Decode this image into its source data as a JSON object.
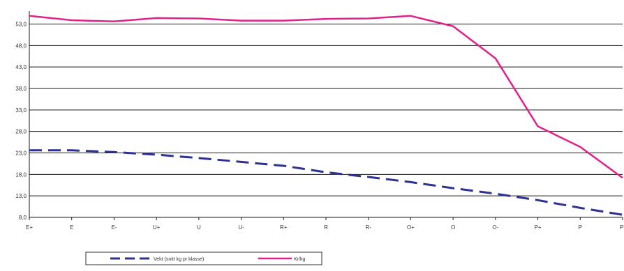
{
  "chart_data": {
    "type": "line",
    "categories": [
      "E+",
      "E",
      "E-",
      "U+",
      "U",
      "U-",
      "R+",
      "R",
      "R-",
      "O+",
      "O",
      "O-",
      "P+",
      "P",
      "P-"
    ],
    "y_ticks": [
      "8,0",
      "13,0",
      "18,0",
      "23,0",
      "28,0",
      "33,0",
      "38,0",
      "43,0",
      "48,0",
      "53,0"
    ],
    "ylim": [
      8,
      56
    ],
    "grid": "horizontal",
    "legend_position": "bottom-left",
    "series": [
      {
        "name": "Vekt (snitt kg pr klasse)",
        "style": "dashed",
        "color": "#2e3192",
        "values": [
          23.6,
          23.6,
          23.2,
          22.6,
          21.8,
          20.9,
          20.0,
          18.5,
          17.4,
          16.2,
          14.8,
          13.5,
          12.0,
          10.2,
          8.6
        ]
      },
      {
        "name": "Kr/kg",
        "style": "solid",
        "color": "#e0218a",
        "values": [
          54.9,
          53.9,
          53.6,
          54.4,
          54.3,
          53.8,
          53.8,
          54.2,
          54.3,
          54.9,
          52.5,
          45.0,
          29.2,
          24.4,
          17.2
        ]
      }
    ]
  }
}
